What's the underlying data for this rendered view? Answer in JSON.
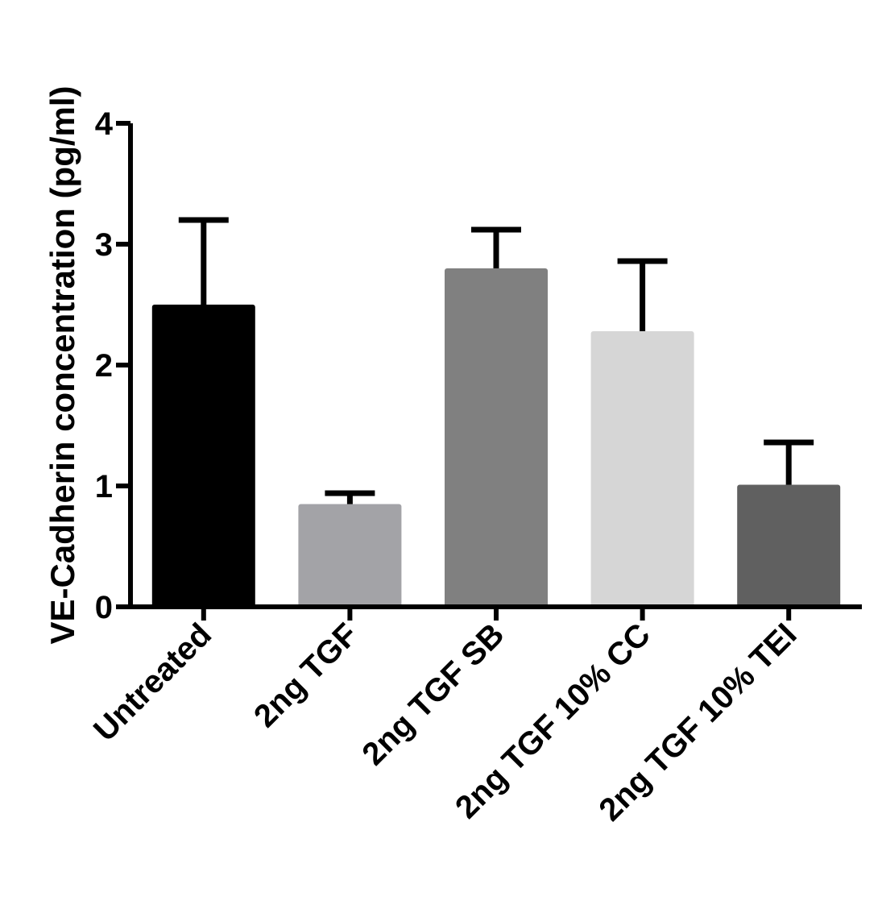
{
  "chart_data": {
    "type": "bar",
    "title": "",
    "xlabel": "",
    "ylabel": "VE-Cadherin concentration (pg/ml)",
    "ylim": [
      0,
      4
    ],
    "yticks": [
      0,
      1,
      2,
      3,
      4
    ],
    "categories": [
      "Untreated",
      "2ng TGF",
      "2ng TGF SB",
      "2ng TGF 10% CC",
      "2ng TGF 10% TEI"
    ],
    "values": [
      2.5,
      0.85,
      2.8,
      2.28,
      1.01
    ],
    "errors": [
      0.7,
      0.09,
      0.32,
      0.58,
      0.35
    ],
    "colors": [
      "#000000",
      "#a3a3a7",
      "#808080",
      "#d6d6d6",
      "#606060"
    ],
    "grid": false
  }
}
